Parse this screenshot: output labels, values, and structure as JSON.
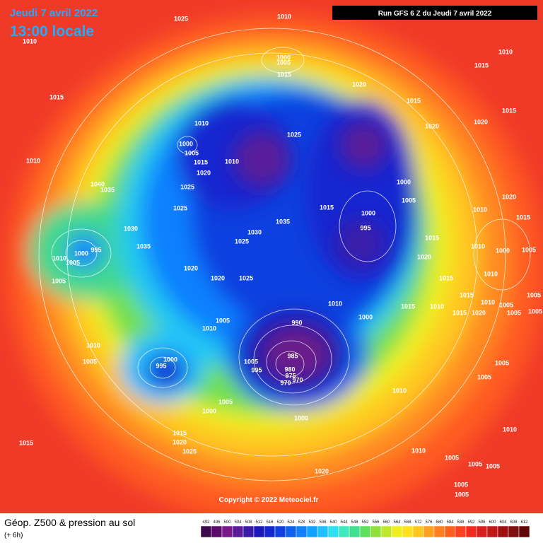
{
  "header": {
    "date": "Jeudi 7 avril 2022",
    "time": "13:00 locale",
    "run": "Run GFS 6 Z du Jeudi 7 avril 2022"
  },
  "copyright": "Copyright © 2022 Meteociel.fr",
  "footer": {
    "title": "Géop. Z500 & pression au sol",
    "lead": "(+ 6h)"
  },
  "colorbar": {
    "ticks": [
      492,
      496,
      500,
      504,
      508,
      512,
      516,
      520,
      524,
      528,
      532,
      536,
      540,
      544,
      548,
      552,
      556,
      560,
      564,
      568,
      572,
      576,
      580,
      584,
      588,
      592,
      596,
      600,
      604,
      608,
      612
    ],
    "colors": [
      "#3c0a4a",
      "#5c0a6e",
      "#7a1a8a",
      "#5a1a9a",
      "#3a1aa8",
      "#1a1ab8",
      "#1428d0",
      "#1040e0",
      "#1060f0",
      "#1080ff",
      "#10a0ff",
      "#20c0ff",
      "#30e0f0",
      "#40e8c0",
      "#40e090",
      "#60e060",
      "#90e040",
      "#c0e830",
      "#f0f020",
      "#ffe020",
      "#ffc820",
      "#ffa020",
      "#ff8020",
      "#ff6020",
      "#ff4020",
      "#f02a20",
      "#d82020",
      "#c01818",
      "#a01010",
      "#801010",
      "#600808"
    ]
  },
  "isobar_labels": [
    "1025",
    "1010",
    "1010",
    "1000",
    "1005",
    "1015",
    "1010",
    "1015",
    "1015",
    "1020",
    "1015",
    "1015",
    "1010",
    "1000",
    "1005",
    "1015",
    "1020",
    "1010",
    "1025",
    "1020",
    "1020",
    "1010",
    "1040",
    "1035",
    "1025",
    "1025",
    "1000",
    "1005",
    "1015",
    "1000",
    "995",
    "1020",
    "1010",
    "1015",
    "1030",
    "1035",
    "1030",
    "1025",
    "1035",
    "995",
    "1000",
    "1010",
    "1005",
    "1015",
    "1010",
    "1000",
    "1005",
    "1020",
    "1020",
    "1005",
    "1020",
    "1025",
    "1010",
    "1015",
    "1010",
    "1015",
    "1010",
    "1015",
    "1010",
    "1005",
    "1005",
    "1015",
    "1020",
    "1005",
    "1005",
    "1000",
    "1005",
    "1010",
    "990",
    "1010",
    "985",
    "1005",
    "1005",
    "995",
    "980",
    "975",
    "970",
    "970",
    "1000",
    "995",
    "1005",
    "1005",
    "1010",
    "1005",
    "1000",
    "1000",
    "1015",
    "1020",
    "1015",
    "1025",
    "1010",
    "1010",
    "1005",
    "1005",
    "1005",
    "1020",
    "1005",
    "1005"
  ]
}
